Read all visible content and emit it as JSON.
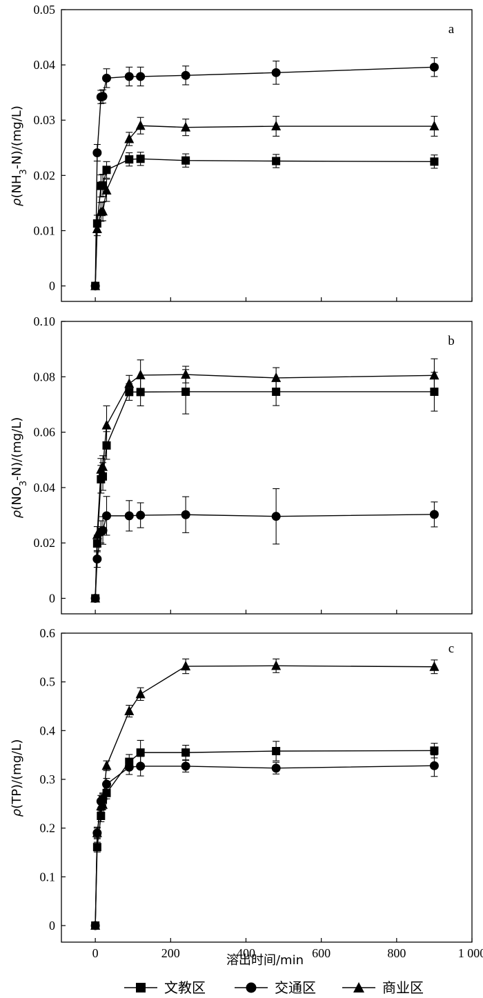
{
  "chart_data": [
    {
      "type": "line",
      "panel": "a",
      "ylabel": "ρ(NH3-N)/(mg/L)",
      "ylabel_parts": [
        "ρ(NH",
        "3",
        "-N)/(mg/L)"
      ],
      "xlim": [
        -90,
        1000
      ],
      "ylim": [
        -0.0028,
        0.05
      ],
      "yticks": [
        0,
        0.01,
        0.02,
        0.03,
        0.04,
        0.05
      ],
      "ytick_labels": [
        "0",
        "0.01",
        "0.02",
        "0.03",
        "0.04",
        "0.05"
      ],
      "x": [
        0,
        5,
        15,
        20,
        30,
        90,
        120,
        240,
        480,
        900
      ],
      "series": [
        {
          "name": "文教区",
          "marker": "square",
          "values": [
            0,
            0.0113,
            0.0181,
            0.0182,
            0.021,
            0.0229,
            0.023,
            0.0227,
            0.0226,
            0.0225
          ],
          "errors": [
            0,
            0.0015,
            0.002,
            0.002,
            0.0015,
            0.0012,
            0.0012,
            0.0012,
            0.0012,
            0.0012
          ]
        },
        {
          "name": "交通区",
          "marker": "circle",
          "values": [
            0,
            0.0241,
            0.0342,
            0.0343,
            0.0376,
            0.0379,
            0.0379,
            0.0381,
            0.0386,
            0.0396
          ],
          "errors": [
            0,
            0.0015,
            0.0012,
            0.0012,
            0.0017,
            0.0017,
            0.0017,
            0.0017,
            0.0021,
            0.0017
          ]
        },
        {
          "name": "商业区",
          "marker": "triangle",
          "values": [
            0,
            0.0103,
            0.0134,
            0.0135,
            0.0173,
            0.0266,
            0.029,
            0.0287,
            0.0289,
            0.0289
          ],
          "errors": [
            0,
            0.0012,
            0.0017,
            0.0017,
            0.002,
            0.0012,
            0.0015,
            0.0015,
            0.0018,
            0.0018
          ]
        }
      ]
    },
    {
      "type": "line",
      "panel": "b",
      "ylabel": "ρ(NO3-N)/(mg/L)",
      "ylabel_parts": [
        "ρ(NO",
        "3",
        "-N)/(mg/L)"
      ],
      "xlim": [
        -90,
        1000
      ],
      "ylim": [
        -0.0056,
        0.1
      ],
      "yticks": [
        0,
        0.02,
        0.04,
        0.06,
        0.08,
        0.1
      ],
      "ytick_labels": [
        "0",
        "0.02",
        "0.04",
        "0.06",
        "0.08",
        "0.10"
      ],
      "x": [
        0,
        5,
        15,
        20,
        30,
        90,
        120,
        240,
        480,
        900
      ],
      "series": [
        {
          "name": "文教区",
          "marker": "square",
          "values": [
            0,
            0.0198,
            0.043,
            0.044,
            0.0552,
            0.0745,
            0.0745,
            0.0746,
            0.0746,
            0.0746
          ],
          "errors": [
            0,
            0.003,
            0.005,
            0.005,
            0.005,
            0.003,
            0.005,
            0.008,
            0.005,
            0.007
          ]
        },
        {
          "name": "交通区",
          "marker": "circle",
          "values": [
            0,
            0.0142,
            0.024,
            0.0245,
            0.0298,
            0.0298,
            0.03,
            0.0302,
            0.0296,
            0.0303
          ],
          "errors": [
            0,
            0.003,
            0.004,
            0.005,
            0.007,
            0.0055,
            0.0045,
            0.0065,
            0.01,
            0.0045
          ]
        },
        {
          "name": "商业区",
          "marker": "triangle",
          "values": [
            0,
            0.0229,
            0.0465,
            0.0475,
            0.0625,
            0.0775,
            0.0806,
            0.0808,
            0.0796,
            0.0805
          ],
          "errors": [
            0,
            0.003,
            0.004,
            0.004,
            0.007,
            0.003,
            0.0055,
            0.003,
            0.0037,
            0.006
          ]
        }
      ]
    },
    {
      "type": "line",
      "panel": "c",
      "ylabel": "ρ(TP)/(mg/L)",
      "ylabel_parts": [
        "ρ(TP)/(mg/L)",
        "",
        ""
      ],
      "xlim": [
        -90,
        1000
      ],
      "ylim": [
        -0.034,
        0.6
      ],
      "yticks": [
        0,
        0.1,
        0.2,
        0.3,
        0.4,
        0.5,
        0.6
      ],
      "ytick_labels": [
        "0",
        "0.1",
        "0.2",
        "0.3",
        "0.4",
        "0.5",
        "0.6"
      ],
      "x": [
        0,
        5,
        15,
        20,
        30,
        90,
        120,
        240,
        480,
        900
      ],
      "series": [
        {
          "name": "文教区",
          "marker": "square",
          "values": [
            0,
            0.161,
            0.225,
            0.258,
            0.272,
            0.336,
            0.355,
            0.355,
            0.358,
            0.359
          ],
          "errors": [
            0,
            0.01,
            0.012,
            0.012,
            0.012,
            0.015,
            0.025,
            0.015,
            0.02,
            0.015
          ]
        },
        {
          "name": "交通区",
          "marker": "circle",
          "values": [
            0,
            0.19,
            0.255,
            0.26,
            0.29,
            0.325,
            0.327,
            0.327,
            0.323,
            0.328
          ],
          "errors": [
            0,
            0.012,
            0.012,
            0.012,
            0.012,
            0.015,
            0.02,
            0.012,
            0.012,
            0.022
          ]
        },
        {
          "name": "商业区",
          "marker": "triangle",
          "values": [
            0,
            0.19,
            0.245,
            0.248,
            0.328,
            0.44,
            0.475,
            0.532,
            0.533,
            0.531
          ],
          "errors": [
            0,
            0.01,
            0.01,
            0.01,
            0.01,
            0.012,
            0.013,
            0.015,
            0.014,
            0.014
          ]
        }
      ]
    }
  ],
  "panel_letters": [
    "a",
    "b",
    "c"
  ],
  "xticks": [
    0,
    200,
    400,
    600,
    800,
    1000
  ],
  "xtick_labels": [
    "0",
    "200",
    "400",
    "600",
    "800",
    "1 000"
  ],
  "xlabel": "溶出时间/min",
  "legend": {
    "position": "bottom-center",
    "items": [
      {
        "name": "文教区",
        "marker": "square"
      },
      {
        "name": "交通区",
        "marker": "circle"
      },
      {
        "name": "商业区",
        "marker": "triangle"
      }
    ]
  },
  "colors": {
    "line": "#000000",
    "background": "#ffffff"
  }
}
